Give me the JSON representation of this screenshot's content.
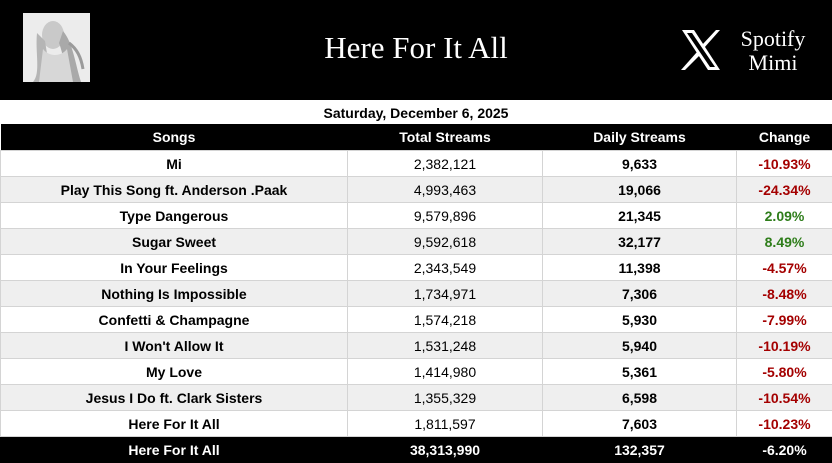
{
  "header": {
    "album_title": "Here For It All",
    "brand_line1": "Spotify",
    "brand_line2": "Mimi"
  },
  "date": "Saturday, December 6, 2025",
  "columns": [
    "Songs",
    "Total Streams",
    "Daily Streams",
    "Change"
  ],
  "rows": [
    {
      "song": "Mi",
      "total": "2,382,121",
      "daily": "9,633",
      "change": "-10.93%",
      "direction": "down"
    },
    {
      "song": "Play This Song ft. Anderson .Paak",
      "total": "4,993,463",
      "daily": "19,066",
      "change": "-24.34%",
      "direction": "down"
    },
    {
      "song": "Type Dangerous",
      "total": "9,579,896",
      "daily": "21,345",
      "change": "2.09%",
      "direction": "up"
    },
    {
      "song": "Sugar Sweet",
      "total": "9,592,618",
      "daily": "32,177",
      "change": "8.49%",
      "direction": "up"
    },
    {
      "song": "In Your Feelings",
      "total": "2,343,549",
      "daily": "11,398",
      "change": "-4.57%",
      "direction": "down"
    },
    {
      "song": "Nothing Is Impossible",
      "total": "1,734,971",
      "daily": "7,306",
      "change": "-8.48%",
      "direction": "down"
    },
    {
      "song": "Confetti & Champagne",
      "total": "1,574,218",
      "daily": "5,930",
      "change": "-7.99%",
      "direction": "down"
    },
    {
      "song": "I Won't Allow It",
      "total": "1,531,248",
      "daily": "5,940",
      "change": "-10.19%",
      "direction": "down"
    },
    {
      "song": "My Love",
      "total": "1,414,980",
      "daily": "5,361",
      "change": "-5.80%",
      "direction": "down"
    },
    {
      "song": "Jesus I Do ft. Clark Sisters",
      "total": "1,355,329",
      "daily": "6,598",
      "change": "-10.54%",
      "direction": "down"
    },
    {
      "song": "Here For It All",
      "total": "1,811,597",
      "daily": "7,603",
      "change": "-10.23%",
      "direction": "down"
    }
  ],
  "total_row": {
    "song": "Here For It All",
    "total": "38,313,990",
    "daily": "132,357",
    "change": "-6.20%"
  },
  "colors": {
    "header_bg": "#000000",
    "negative": "#a40000",
    "positive": "#2e7d1a",
    "row_alt": "#efefef"
  },
  "icons": {
    "album_art": "album-cover-image",
    "brand_logo": "x-logo-icon"
  }
}
